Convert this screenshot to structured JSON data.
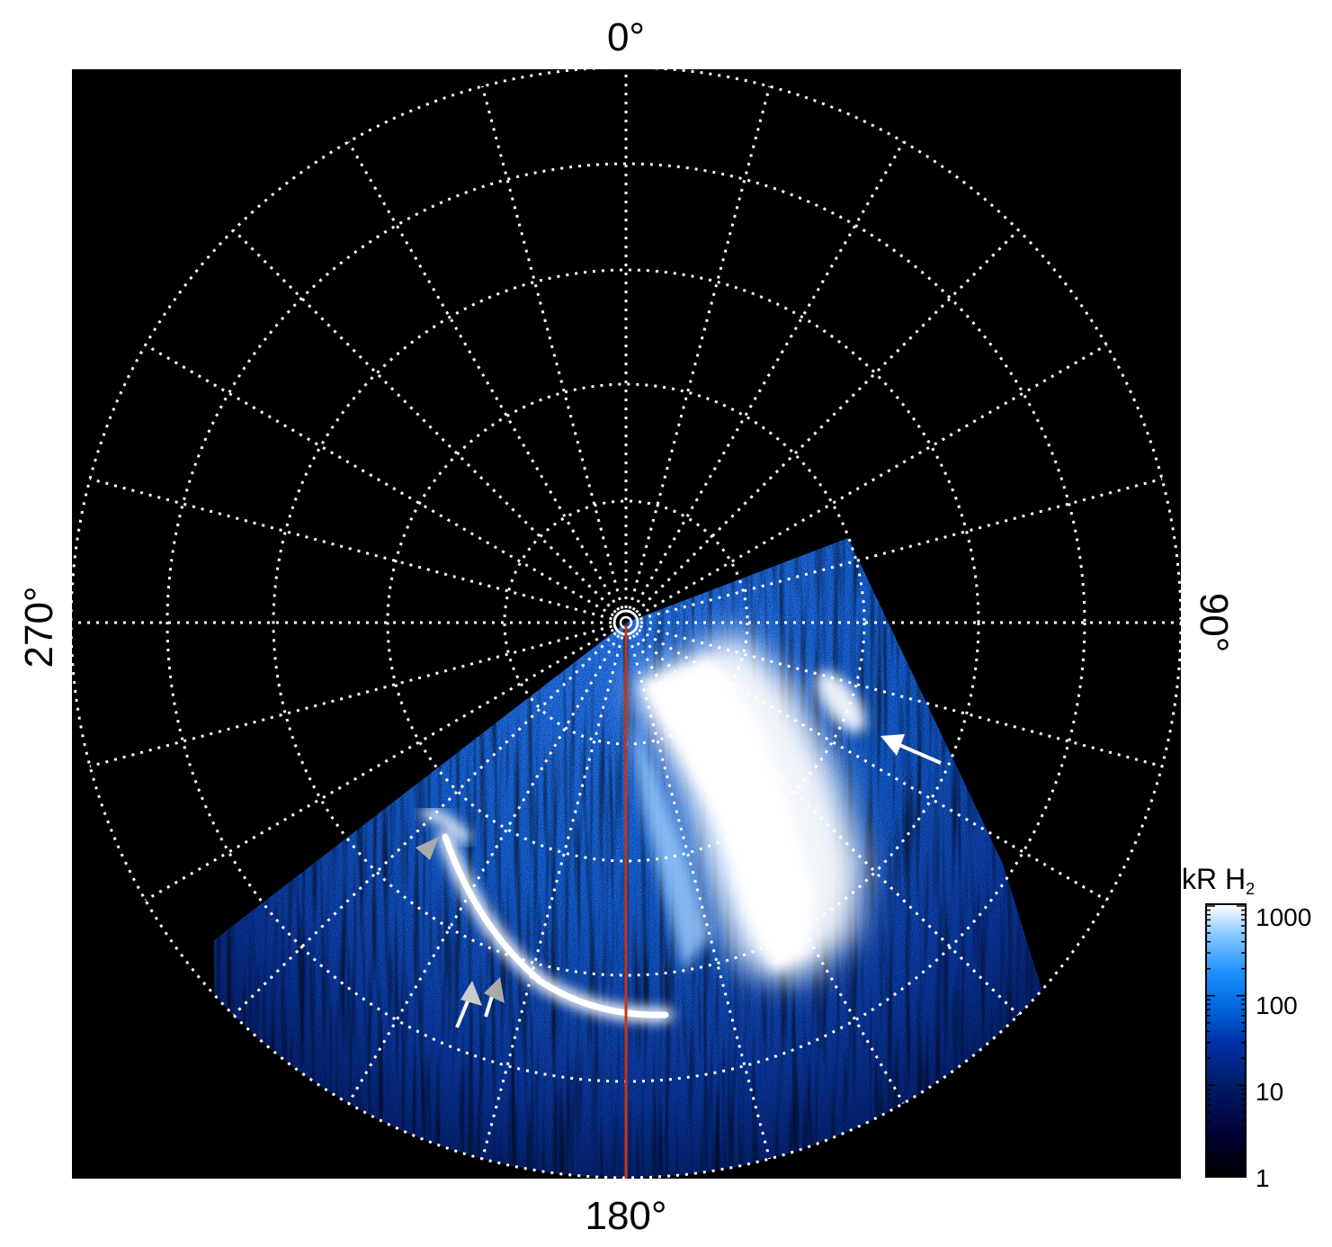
{
  "figure": {
    "orientation_labels": {
      "top": "0°",
      "right": "90°",
      "bottom": "180°",
      "left": "270°"
    },
    "colorbar": {
      "title_main": "kR H",
      "title_sub": "2",
      "scale": "log",
      "ticks": [
        "1000",
        "100",
        "10",
        "1"
      ],
      "colors": [
        "#000000",
        "#000033",
        "#001a66",
        "#0033aa",
        "#0066dd",
        "#1e90ff",
        "#7fc4ff",
        "#ffffff"
      ]
    },
    "colors": {
      "background": "#000000",
      "grid": "#ffffff",
      "meridian_line": "#cc3311",
      "arrow_white": "#ffffff",
      "arrow_gray": "#aaaaaa",
      "aurora_dim": "#0a2a7a",
      "aurora_mid": "#1e7bff",
      "aurora_bright": "#ffffff"
    },
    "annotations": [
      {
        "name": "white-arrow",
        "color": "white"
      },
      {
        "name": "gray-arrowhead",
        "color": "gray"
      },
      {
        "name": "double-arrow",
        "color": "gray"
      }
    ]
  }
}
